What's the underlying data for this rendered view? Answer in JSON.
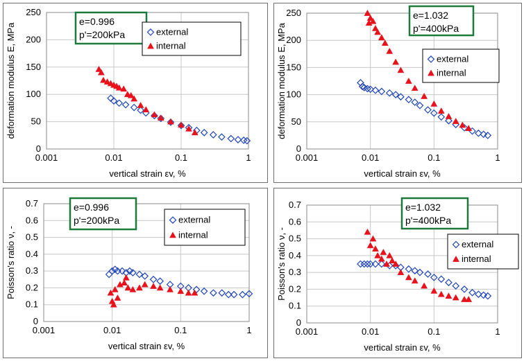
{
  "colors": {
    "external": "#1f45b8",
    "internal": "#e8121c",
    "annotation_border": "#1e7a3a",
    "gridline": "#c8c8c8"
  },
  "chart_data": [
    {
      "type": "scatter",
      "xscale": "log",
      "xlim": [
        0.001,
        1
      ],
      "ylim": [
        0,
        250
      ],
      "xticks": [
        "0.001",
        "0.01",
        "0.1",
        "1"
      ],
      "yticks": [
        "0",
        "50",
        "100",
        "150",
        "200",
        "250"
      ],
      "xlabel": "vertical strain εv, %",
      "ylabel": "deformation modulus E, MPa",
      "annotation": [
        "e=0.996",
        "p'=200kPa"
      ],
      "legend_position": "top-right",
      "series": [
        {
          "name": "external",
          "marker": "diamond-open",
          "points": [
            [
              0.009,
              93
            ],
            [
              0.01,
              88
            ],
            [
              0.012,
              84
            ],
            [
              0.015,
              81
            ],
            [
              0.02,
              76
            ],
            [
              0.025,
              71
            ],
            [
              0.03,
              66
            ],
            [
              0.04,
              61
            ],
            [
              0.05,
              56
            ],
            [
              0.07,
              49
            ],
            [
              0.1,
              43
            ],
            [
              0.13,
              39
            ],
            [
              0.17,
              34
            ],
            [
              0.22,
              30
            ],
            [
              0.3,
              26
            ],
            [
              0.4,
              22
            ],
            [
              0.55,
              19
            ],
            [
              0.7,
              17
            ],
            [
              0.85,
              16
            ],
            [
              0.95,
              15
            ]
          ]
        },
        {
          "name": "internal",
          "marker": "triangle-filled",
          "points": [
            [
              0.006,
              146
            ],
            [
              0.0065,
              140
            ],
            [
              0.007,
              126
            ],
            [
              0.008,
              123
            ],
            [
              0.009,
              120
            ],
            [
              0.01,
              117
            ],
            [
              0.011,
              115
            ],
            [
              0.012,
              112
            ],
            [
              0.014,
              110
            ],
            [
              0.016,
              100
            ],
            [
              0.018,
              98
            ],
            [
              0.02,
              92
            ],
            [
              0.025,
              80
            ],
            [
              0.03,
              72
            ],
            [
              0.04,
              63
            ],
            [
              0.05,
              57
            ],
            [
              0.07,
              50
            ],
            [
              0.1,
              44
            ],
            [
              0.13,
              37
            ],
            [
              0.16,
              30
            ]
          ]
        }
      ]
    },
    {
      "type": "scatter",
      "xscale": "log",
      "xlim": [
        0.001,
        1
      ],
      "ylim": [
        0,
        250
      ],
      "xticks": [
        "0.001",
        "0.01",
        "0.1",
        "1"
      ],
      "yticks": [
        "0",
        "50",
        "100",
        "150",
        "200",
        "250"
      ],
      "xlabel": "vertical strain εv, %",
      "ylabel": "deformation modulus E, MPa",
      "annotation": [
        "e=1.032",
        "p'=400kPa"
      ],
      "legend_position": "top-right",
      "series": [
        {
          "name": "external",
          "marker": "diamond-open",
          "points": [
            [
              0.007,
              122
            ],
            [
              0.0075,
              115
            ],
            [
              0.008,
              113
            ],
            [
              0.009,
              111
            ],
            [
              0.01,
              110
            ],
            [
              0.012,
              108
            ],
            [
              0.015,
              106
            ],
            [
              0.02,
              103
            ],
            [
              0.025,
              100
            ],
            [
              0.03,
              96
            ],
            [
              0.04,
              91
            ],
            [
              0.05,
              86
            ],
            [
              0.06,
              80
            ],
            [
              0.08,
              72
            ],
            [
              0.1,
              66
            ],
            [
              0.13,
              59
            ],
            [
              0.17,
              52
            ],
            [
              0.22,
              45
            ],
            [
              0.3,
              39
            ],
            [
              0.4,
              33
            ],
            [
              0.5,
              29
            ],
            [
              0.6,
              27
            ],
            [
              0.7,
              25
            ]
          ]
        },
        {
          "name": "internal",
          "marker": "triangle-filled",
          "points": [
            [
              0.009,
              250
            ],
            [
              0.0095,
              232
            ],
            [
              0.01,
              241
            ],
            [
              0.011,
              235
            ],
            [
              0.012,
              222
            ],
            [
              0.013,
              215
            ],
            [
              0.015,
              205
            ],
            [
              0.017,
              195
            ],
            [
              0.02,
              180
            ],
            [
              0.025,
              160
            ],
            [
              0.03,
              145
            ],
            [
              0.04,
              125
            ],
            [
              0.05,
              112
            ],
            [
              0.07,
              97
            ],
            [
              0.1,
              83
            ],
            [
              0.13,
              70
            ],
            [
              0.17,
              60
            ],
            [
              0.22,
              51
            ],
            [
              0.28,
              44
            ],
            [
              0.35,
              38
            ]
          ]
        }
      ]
    },
    {
      "type": "scatter",
      "xscale": "log",
      "xlim": [
        0.001,
        1
      ],
      "ylim": [
        0,
        0.7
      ],
      "xticks": [
        "0.001",
        "0.01",
        "0.1",
        "1"
      ],
      "yticks": [
        "0",
        "0.1",
        "0.2",
        "0.3",
        "0.4",
        "0.5",
        "0.6",
        "0.7"
      ],
      "xlabel": "vertical strain εv, %",
      "ylabel": "Poisson's ratio ν, -",
      "annotation": [
        "e=0.996",
        "p'=200kPa"
      ],
      "legend_position": "top-right",
      "series": [
        {
          "name": "external",
          "marker": "diamond-open",
          "points": [
            [
              0.009,
              0.28
            ],
            [
              0.01,
              0.3
            ],
            [
              0.011,
              0.31
            ],
            [
              0.012,
              0.3
            ],
            [
              0.014,
              0.3
            ],
            [
              0.016,
              0.29
            ],
            [
              0.018,
              0.3
            ],
            [
              0.02,
              0.29
            ],
            [
              0.025,
              0.28
            ],
            [
              0.03,
              0.27
            ],
            [
              0.04,
              0.25
            ],
            [
              0.05,
              0.24
            ],
            [
              0.07,
              0.22
            ],
            [
              0.1,
              0.21
            ],
            [
              0.13,
              0.2
            ],
            [
              0.17,
              0.19
            ],
            [
              0.22,
              0.18
            ],
            [
              0.3,
              0.17
            ],
            [
              0.4,
              0.17
            ],
            [
              0.5,
              0.16
            ],
            [
              0.6,
              0.16
            ],
            [
              0.8,
              0.16
            ],
            [
              1.0,
              0.165
            ]
          ]
        },
        {
          "name": "internal",
          "marker": "triangle-filled",
          "points": [
            [
              0.0095,
              0.17
            ],
            [
              0.01,
              0.12
            ],
            [
              0.0105,
              0.1
            ],
            [
              0.011,
              0.19
            ],
            [
              0.012,
              0.14
            ],
            [
              0.013,
              0.22
            ],
            [
              0.015,
              0.23
            ],
            [
              0.016,
              0.26
            ],
            [
              0.017,
              0.2
            ],
            [
              0.02,
              0.19
            ],
            [
              0.025,
              0.2
            ],
            [
              0.03,
              0.22
            ],
            [
              0.04,
              0.21
            ],
            [
              0.05,
              0.2
            ],
            [
              0.07,
              0.19
            ],
            [
              0.1,
              0.18
            ],
            [
              0.13,
              0.17
            ],
            [
              0.16,
              0.17
            ]
          ]
        }
      ]
    },
    {
      "type": "scatter",
      "xscale": "log",
      "xlim": [
        0.001,
        1
      ],
      "ylim": [
        0,
        0.7
      ],
      "xticks": [
        "0.001",
        "0.01",
        "0.1",
        "1"
      ],
      "yticks": [
        "0",
        "0.1",
        "0.2",
        "0.3",
        "0.4",
        "0.5",
        "0.6",
        "0.7"
      ],
      "xlabel": "vertical strain εv, %",
      "ylabel": "Poisson's ratio ν, -",
      "annotation": [
        "e=1.032",
        "p'=400kPa"
      ],
      "legend_position": "top-right",
      "series": [
        {
          "name": "external",
          "marker": "diamond-open",
          "points": [
            [
              0.007,
              0.35
            ],
            [
              0.008,
              0.35
            ],
            [
              0.009,
              0.35
            ],
            [
              0.01,
              0.35
            ],
            [
              0.012,
              0.35
            ],
            [
              0.015,
              0.35
            ],
            [
              0.02,
              0.34
            ],
            [
              0.025,
              0.34
            ],
            [
              0.03,
              0.33
            ],
            [
              0.04,
              0.32
            ],
            [
              0.05,
              0.31
            ],
            [
              0.06,
              0.3
            ],
            [
              0.08,
              0.29
            ],
            [
              0.1,
              0.27
            ],
            [
              0.13,
              0.26
            ],
            [
              0.17,
              0.24
            ],
            [
              0.22,
              0.22
            ],
            [
              0.3,
              0.2
            ],
            [
              0.4,
              0.18
            ],
            [
              0.5,
              0.17
            ],
            [
              0.6,
              0.165
            ],
            [
              0.7,
              0.16
            ]
          ]
        },
        {
          "name": "internal",
          "marker": "triangle-filled",
          "points": [
            [
              0.009,
              0.54
            ],
            [
              0.01,
              0.46
            ],
            [
              0.011,
              0.5
            ],
            [
              0.012,
              0.44
            ],
            [
              0.013,
              0.4
            ],
            [
              0.015,
              0.38
            ],
            [
              0.016,
              0.42
            ],
            [
              0.018,
              0.35
            ],
            [
              0.02,
              0.4
            ],
            [
              0.022,
              0.37
            ],
            [
              0.025,
              0.35
            ],
            [
              0.03,
              0.3
            ],
            [
              0.04,
              0.27
            ],
            [
              0.05,
              0.25
            ],
            [
              0.07,
              0.22
            ],
            [
              0.1,
              0.19
            ],
            [
              0.13,
              0.17
            ],
            [
              0.17,
              0.16
            ],
            [
              0.22,
              0.15
            ],
            [
              0.3,
              0.14
            ],
            [
              0.35,
              0.14
            ]
          ]
        }
      ]
    }
  ]
}
